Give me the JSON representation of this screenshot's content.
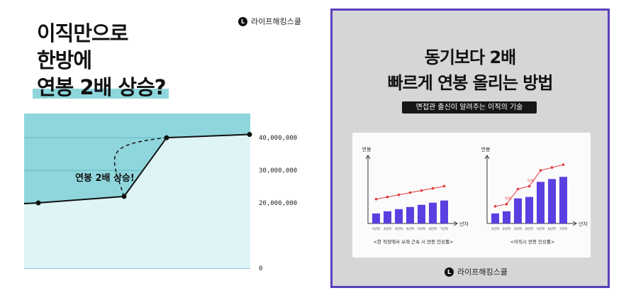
{
  "left": {
    "brand": {
      "logo_letter": "L",
      "name": "라이프해킹스쿨"
    },
    "headline": {
      "line1": "이직만으로",
      "line2": "한방에",
      "line3": "연봉 2배 상승?"
    },
    "chart_data": {
      "type": "line",
      "x": [
        0,
        1,
        2,
        3
      ],
      "values": [
        20000000,
        22000000,
        40000000,
        41000000
      ],
      "ylim": [
        0,
        41000000
      ],
      "yticks": [
        "40,000,000",
        "30,000,000",
        "20,000,000",
        "0"
      ],
      "annotation": "연봉 2배 상승!",
      "colors": {
        "background": "#8fd6dc",
        "area": "#dff4f5",
        "line": "#111111"
      }
    }
  },
  "right": {
    "title_line1": "동기보다 2배",
    "title_line2": "빠르게 연봉 올리는 방법",
    "subtitle": "면접관 출신이 알려주는 이직의 기술",
    "brand": {
      "logo_letter": "L",
      "name": "라이프해킹스쿨"
    },
    "colors": {
      "border": "#5b3fbd",
      "bar": "#5b3fe0",
      "line": "#e03a3a"
    },
    "chart_data": [
      {
        "type": "bar",
        "ylabel": "연봉",
        "xlabel": "년차",
        "categories": [
          "1년차",
          "2년차",
          "3년차",
          "4년차",
          "5년차",
          "6년차",
          "7년차"
        ],
        "values": [
          14,
          17,
          20,
          23,
          26,
          29,
          32
        ],
        "line_values": [
          34,
          37,
          40,
          43,
          46,
          49,
          52
        ],
        "caption": "<한 직장에서 오래 근속 시 연봉 인상률>",
        "annotations": []
      },
      {
        "type": "bar",
        "ylabel": "연봉",
        "xlabel": "년차",
        "categories": [
          "1년차",
          "2년차",
          "3년차",
          "4년차",
          "5년차",
          "6년차",
          "7년차"
        ],
        "values": [
          14,
          17,
          35,
          37,
          58,
          62,
          65
        ],
        "line_values": [
          24,
          27,
          48,
          52,
          74,
          78,
          82
        ],
        "caption": "<이직시 연봉 인상률>",
        "annotations": [
          {
            "index": 1,
            "text": "이직"
          },
          {
            "index": 3,
            "text": "이직"
          }
        ]
      }
    ]
  }
}
